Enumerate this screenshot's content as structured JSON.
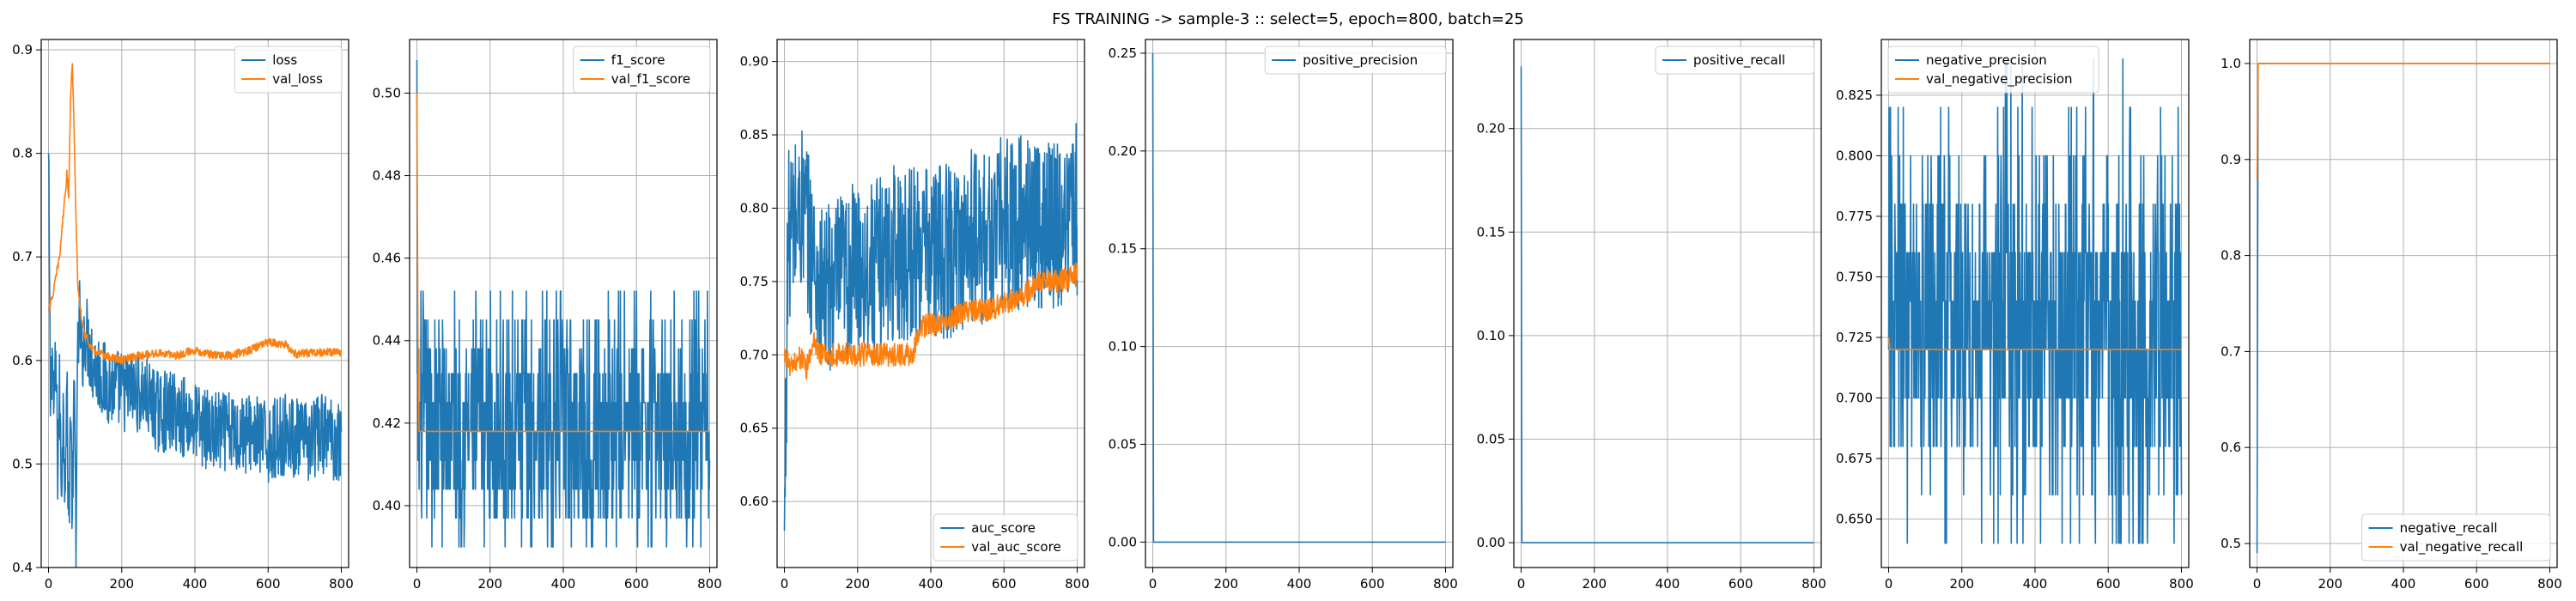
{
  "figure": {
    "title": "FS TRAINING -> sample-3 :: select=5, epoch=800, batch=25"
  },
  "colors": {
    "train": "#1f77b4",
    "val": "#ff7f0e",
    "grid": "#b0b0b0",
    "axis": "#000000"
  },
  "chart_data": [
    {
      "type": "line",
      "xlim": [
        -20,
        820
      ],
      "ylim": [
        0.4,
        0.91
      ],
      "xticks": [
        0,
        200,
        400,
        600,
        800
      ],
      "yticks": [
        0.4,
        0.5,
        0.6,
        0.7,
        0.8,
        0.9
      ],
      "ytick_labels": [
        "0.4",
        "0.5",
        "0.6",
        "0.7",
        "0.8",
        "0.9"
      ],
      "grid": true,
      "legend": "upper-right",
      "series": [
        {
          "name": "loss",
          "color": "#1f77b4",
          "points": [
            [
              0,
              0.8
            ],
            [
              5,
              0.56
            ],
            [
              10,
              0.61
            ],
            [
              15,
              0.55
            ],
            [
              20,
              0.6
            ],
            [
              25,
              0.5
            ],
            [
              30,
              0.57
            ],
            [
              35,
              0.48
            ],
            [
              40,
              0.55
            ],
            [
              45,
              0.49
            ],
            [
              50,
              0.58
            ],
            [
              55,
              0.43
            ],
            [
              60,
              0.56
            ],
            [
              65,
              0.45
            ],
            [
              70,
              0.57
            ],
            [
              75,
              0.44
            ],
            [
              80,
              0.6
            ],
            [
              85,
              0.65
            ],
            [
              90,
              0.6
            ],
            [
              100,
              0.63
            ],
            [
              120,
              0.6
            ],
            [
              150,
              0.58
            ],
            [
              200,
              0.57
            ],
            [
              250,
              0.57
            ],
            [
              300,
              0.55
            ],
            [
              350,
              0.55
            ],
            [
              400,
              0.54
            ],
            [
              450,
              0.53
            ],
            [
              500,
              0.53
            ],
            [
              550,
              0.53
            ],
            [
              600,
              0.52
            ],
            [
              650,
              0.53
            ],
            [
              700,
              0.52
            ],
            [
              750,
              0.53
            ],
            [
              800,
              0.52
            ]
          ],
          "noise": 0.04
        },
        {
          "name": "val_loss",
          "color": "#ff7f0e",
          "points": [
            [
              0,
              0.65
            ],
            [
              10,
              0.66
            ],
            [
              20,
              0.68
            ],
            [
              30,
              0.7
            ],
            [
              40,
              0.74
            ],
            [
              50,
              0.78
            ],
            [
              55,
              0.76
            ],
            [
              60,
              0.85
            ],
            [
              65,
              0.89
            ],
            [
              70,
              0.82
            ],
            [
              75,
              0.74
            ],
            [
              80,
              0.67
            ],
            [
              90,
              0.64
            ],
            [
              100,
              0.625
            ],
            [
              120,
              0.61
            ],
            [
              150,
              0.605
            ],
            [
              200,
              0.6
            ],
            [
              250,
              0.605
            ],
            [
              300,
              0.607
            ],
            [
              350,
              0.605
            ],
            [
              400,
              0.61
            ],
            [
              450,
              0.605
            ],
            [
              500,
              0.605
            ],
            [
              550,
              0.61
            ],
            [
              600,
              0.618
            ],
            [
              650,
              0.615
            ],
            [
              670,
              0.606
            ],
            [
              700,
              0.607
            ],
            [
              750,
              0.608
            ],
            [
              800,
              0.608
            ]
          ],
          "noise": 0.004
        }
      ]
    },
    {
      "type": "line",
      "xlim": [
        -20,
        820
      ],
      "ylim": [
        0.385,
        0.513
      ],
      "xticks": [
        0,
        200,
        400,
        600,
        800
      ],
      "yticks": [
        0.4,
        0.42,
        0.44,
        0.46,
        0.48,
        0.5
      ],
      "ytick_labels": [
        "0.40",
        "0.42",
        "0.44",
        "0.46",
        "0.48",
        "0.50"
      ],
      "grid": true,
      "legend": "upper-right",
      "series": [
        {
          "name": "f1_score",
          "color": "#1f77b4",
          "points": [
            [
              0,
              0.508
            ],
            [
              3,
              0.42
            ],
            [
              800,
              0.42
            ]
          ],
          "noise": 0.012,
          "steps": [
            0.39,
            0.397,
            0.404,
            0.411,
            0.418,
            0.425,
            0.432,
            0.438,
            0.445,
            0.452
          ],
          "weights": [
            1,
            3,
            5,
            6,
            6,
            6,
            5,
            3,
            2,
            1
          ]
        },
        {
          "name": "val_f1_score",
          "color": "#ff7f0e",
          "points": [
            [
              0,
              0.5
            ],
            [
              3,
              0.44
            ],
            [
              6,
              0.418
            ],
            [
              800,
              0.418
            ]
          ],
          "noise": 0
        }
      ]
    },
    {
      "type": "line",
      "xlim": [
        -20,
        820
      ],
      "ylim": [
        0.555,
        0.915
      ],
      "xticks": [
        0,
        200,
        400,
        600,
        800
      ],
      "yticks": [
        0.6,
        0.65,
        0.7,
        0.75,
        0.8,
        0.85,
        0.9
      ],
      "ytick_labels": [
        "0.60",
        "0.65",
        "0.70",
        "0.75",
        "0.80",
        "0.85",
        "0.90"
      ],
      "grid": true,
      "legend": "lower-right",
      "series": [
        {
          "name": "auc_score",
          "color": "#1f77b4",
          "points": [
            [
              0,
              0.58
            ],
            [
              10,
              0.78
            ],
            [
              50,
              0.8
            ],
            [
              100,
              0.74
            ],
            [
              150,
              0.75
            ],
            [
              200,
              0.76
            ],
            [
              250,
              0.76
            ],
            [
              300,
              0.77
            ],
            [
              350,
              0.77
            ],
            [
              400,
              0.77
            ],
            [
              450,
              0.77
            ],
            [
              500,
              0.78
            ],
            [
              550,
              0.78
            ],
            [
              600,
              0.79
            ],
            [
              650,
              0.79
            ],
            [
              700,
              0.79
            ],
            [
              750,
              0.79
            ],
            [
              800,
              0.8
            ]
          ],
          "noise": 0.06
        },
        {
          "name": "val_auc_score",
          "color": "#ff7f0e",
          "points": [
            [
              0,
              0.7
            ],
            [
              20,
              0.69
            ],
            [
              40,
              0.7
            ],
            [
              60,
              0.69
            ],
            [
              80,
              0.71
            ],
            [
              100,
              0.7
            ],
            [
              150,
              0.7
            ],
            [
              200,
              0.7
            ],
            [
              250,
              0.7
            ],
            [
              300,
              0.7
            ],
            [
              350,
              0.7
            ],
            [
              370,
              0.72
            ],
            [
              400,
              0.72
            ],
            [
              450,
              0.725
            ],
            [
              500,
              0.73
            ],
            [
              550,
              0.73
            ],
            [
              600,
              0.735
            ],
            [
              650,
              0.74
            ],
            [
              700,
              0.75
            ],
            [
              750,
              0.75
            ],
            [
              800,
              0.755
            ]
          ],
          "noise": 0.008
        }
      ]
    },
    {
      "type": "line",
      "xlim": [
        -20,
        820
      ],
      "ylim": [
        -0.013,
        0.257
      ],
      "xticks": [
        0,
        200,
        400,
        600,
        800
      ],
      "yticks": [
        0.0,
        0.05,
        0.1,
        0.15,
        0.2,
        0.25
      ],
      "ytick_labels": [
        "0.00",
        "0.05",
        "0.10",
        "0.15",
        "0.20",
        "0.25"
      ],
      "grid": true,
      "legend": "upper-right",
      "series": [
        {
          "name": "positive_precision",
          "color": "#1f77b4",
          "points": [
            [
              0,
              0.25
            ],
            [
              2,
              0.0
            ],
            [
              800,
              0.0
            ]
          ],
          "noise": 0
        }
      ]
    },
    {
      "type": "line",
      "xlim": [
        -20,
        820
      ],
      "ylim": [
        -0.012,
        0.243
      ],
      "xticks": [
        0,
        200,
        400,
        600,
        800
      ],
      "yticks": [
        0.0,
        0.05,
        0.1,
        0.15,
        0.2
      ],
      "ytick_labels": [
        "0.00",
        "0.05",
        "0.10",
        "0.15",
        "0.20"
      ],
      "grid": true,
      "legend": "upper-right",
      "series": [
        {
          "name": "positive_recall",
          "color": "#1f77b4",
          "points": [
            [
              0,
              0.23
            ],
            [
              2,
              0.0
            ],
            [
              800,
              0.0
            ]
          ],
          "noise": 0
        }
      ]
    },
    {
      "type": "line",
      "xlim": [
        -20,
        820
      ],
      "ylim": [
        0.63,
        0.848
      ],
      "xticks": [
        0,
        200,
        400,
        600,
        800
      ],
      "yticks": [
        0.65,
        0.675,
        0.7,
        0.725,
        0.75,
        0.775,
        0.8,
        0.825
      ],
      "ytick_labels": [
        "0.650",
        "0.675",
        "0.700",
        "0.725",
        "0.750",
        "0.775",
        "0.800",
        "0.825"
      ],
      "grid": true,
      "legend": "upper-left",
      "series": [
        {
          "name": "negative_precision",
          "color": "#1f77b4",
          "points": [
            [
              0,
              0.72
            ],
            [
              800,
              0.72
            ]
          ],
          "noise": 0.03,
          "steps": [
            0.64,
            0.66,
            0.68,
            0.7,
            0.72,
            0.74,
            0.76,
            0.78,
            0.8,
            0.82,
            0.84
          ],
          "weights": [
            1,
            2,
            4,
            6,
            8,
            8,
            6,
            4,
            2,
            1,
            0.3
          ]
        },
        {
          "name": "val_negative_precision",
          "color": "#ff7f0e",
          "points": [
            [
              0,
              0.725
            ],
            [
              3,
              0.72
            ],
            [
              800,
              0.72
            ]
          ],
          "noise": 0
        }
      ]
    },
    {
      "type": "line",
      "xlim": [
        -20,
        820
      ],
      "ylim": [
        0.475,
        1.025
      ],
      "xticks": [
        0,
        200,
        400,
        600,
        800
      ],
      "yticks": [
        0.5,
        0.6,
        0.7,
        0.8,
        0.9,
        1.0
      ],
      "ytick_labels": [
        "0.5",
        "0.6",
        "0.7",
        "0.8",
        "0.9",
        "1.0"
      ],
      "grid": true,
      "legend": "lower-right",
      "series": [
        {
          "name": "negative_recall",
          "color": "#1f77b4",
          "points": [
            [
              0,
              0.49
            ],
            [
              3,
              1.0
            ],
            [
              800,
              1.0
            ]
          ],
          "noise": 0
        },
        {
          "name": "val_negative_recall",
          "color": "#ff7f0e",
          "points": [
            [
              0,
              0.88
            ],
            [
              3,
              1.0
            ],
            [
              800,
              1.0
            ]
          ],
          "noise": 0
        }
      ]
    }
  ]
}
